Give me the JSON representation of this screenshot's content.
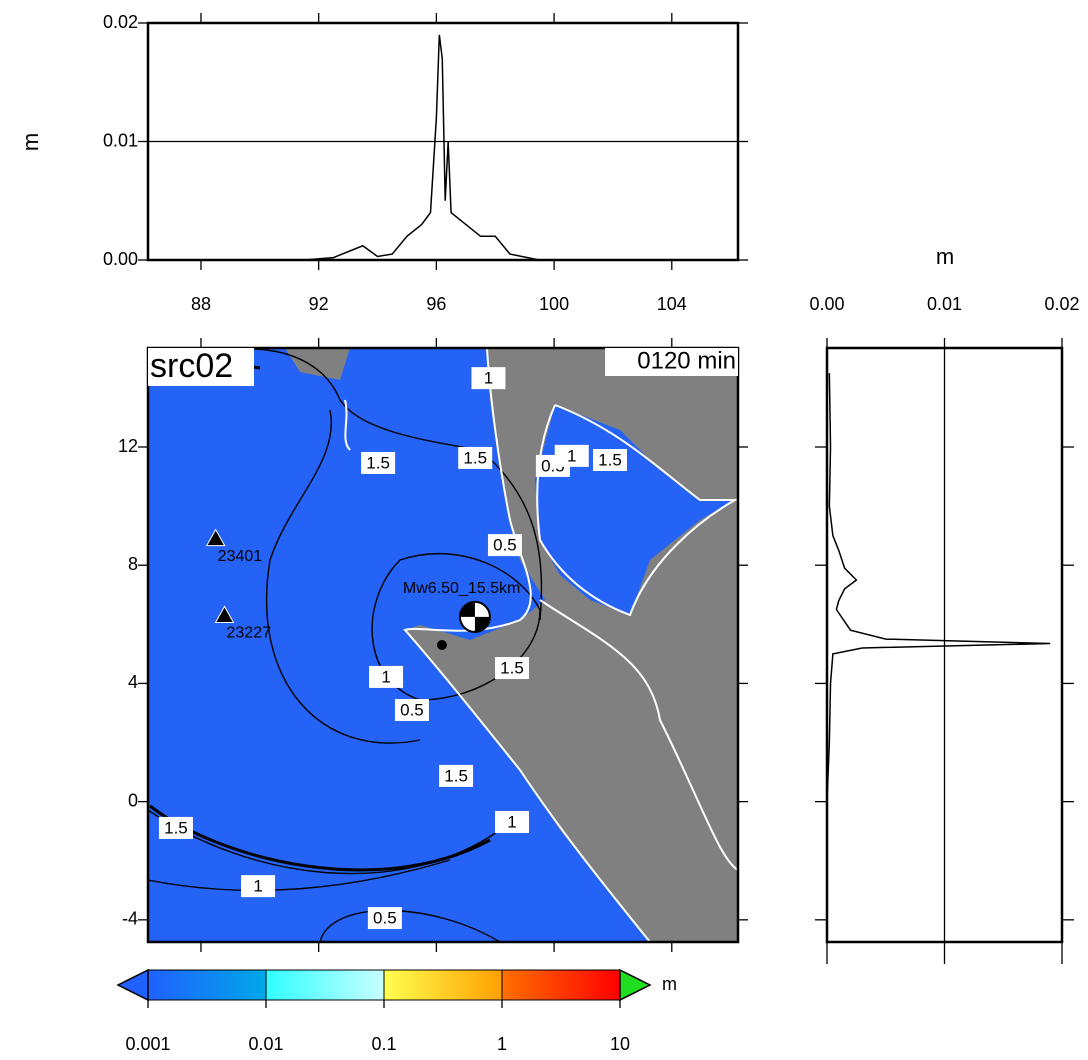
{
  "chart_data": [
    {
      "type": "line",
      "ylabel": "m",
      "x": [
        86.2,
        91.5,
        92.5,
        93.5,
        94.0,
        94.5,
        95.0,
        95.5,
        95.8,
        96.0,
        96.1,
        96.2,
        96.3,
        96.4,
        96.5,
        97.0,
        97.5,
        98.0,
        98.5,
        99.5
      ],
      "values": [
        0,
        0,
        0.0002,
        0.0012,
        0.0003,
        0.0005,
        0.002,
        0.003,
        0.004,
        0.012,
        0.019,
        0.017,
        0.005,
        0.01,
        0.004,
        0.003,
        0.002,
        0.002,
        0.0005,
        0
      ],
      "color": "#000000",
      "xlim": [
        86.2,
        106.25
      ],
      "ylim": [
        0,
        0.02
      ],
      "xticks": [
        88,
        92,
        96,
        100,
        104
      ],
      "yticks": [
        {
          "value": 0,
          "label": "0.00"
        },
        {
          "value": 0.01,
          "label": "0.01"
        },
        {
          "value": 0.02,
          "label": "0.02"
        }
      ],
      "grid": true
    },
    {
      "type": "profile",
      "xlabel": "m",
      "y": [
        14.5,
        12,
        10,
        9,
        8.5,
        7.9,
        7.5,
        7.2,
        6.8,
        6.5,
        5.8,
        5.5,
        5.35,
        5.2,
        5.0,
        4,
        2,
        0,
        -4.75
      ],
      "values": [
        0.0002,
        0.0003,
        0.0002,
        0.0005,
        0.001,
        0.0015,
        0.0025,
        0.0015,
        0.001,
        0.0008,
        0.002,
        0.005,
        0.019,
        0.003,
        0.0005,
        0.0003,
        0.0002,
        0,
        0
      ],
      "color": "#000000",
      "xlim": [
        0,
        0.02
      ],
      "ylim": [
        -4.75,
        15.35
      ],
      "xticks": [
        {
          "value": 0,
          "label": "0.00"
        },
        {
          "value": 0.01,
          "label": "0.01"
        },
        {
          "value": 0.02,
          "label": "0.02"
        }
      ],
      "grid": true
    },
    {
      "type": "map",
      "title": "src02",
      "annotation": "0120 min",
      "xlim": [
        86.2,
        106.25
      ],
      "ylim": [
        -4.75,
        15.35
      ],
      "yticks": [
        12,
        8,
        4,
        0,
        -4
      ],
      "stations": [
        {
          "label": "23401",
          "x": 88.5,
          "y": 8.9
        },
        {
          "label": "23227",
          "x": 88.8,
          "y": 6.3
        }
      ],
      "event": {
        "label": "Mw6.50_15.5km",
        "x": 97.31,
        "y": 6.25
      },
      "epicenter": {
        "x": 96.19,
        "y": 5.3
      },
      "contour_labels": [
        {
          "label": "1",
          "x": 97.77,
          "y": 14.33
        },
        {
          "label": "1.5",
          "x": 94.02,
          "y": 11.46
        },
        {
          "label": "1.5",
          "x": 97.32,
          "y": 11.63
        },
        {
          "label": "0.5",
          "x": 99.96,
          "y": 11.36
        },
        {
          "label": "1",
          "x": 100.6,
          "y": 11.7
        },
        {
          "label": "1.5",
          "x": 101.9,
          "y": 11.56
        },
        {
          "label": "0.5",
          "x": 98.33,
          "y": 8.68
        },
        {
          "label": "1",
          "x": 94.29,
          "y": 4.22
        },
        {
          "label": "0.5",
          "x": 95.17,
          "y": 3.1
        },
        {
          "label": "1.5",
          "x": 98.57,
          "y": 4.52
        },
        {
          "label": "1.5",
          "x": 96.67,
          "y": 0.87
        },
        {
          "label": "1",
          "x": 98.57,
          "y": -0.69
        },
        {
          "label": "1.5",
          "x": 87.15,
          "y": -0.89
        },
        {
          "label": "1",
          "x": 89.94,
          "y": -2.86
        },
        {
          "label": "0.5",
          "x": 94.25,
          "y": -3.94
        }
      ],
      "colorbar": {
        "unit": "m",
        "ticks": [
          0.001,
          0.01,
          0.1,
          1,
          10
        ],
        "colors": [
          [
            "#2060ff",
            "#00a8e8"
          ],
          [
            "#30ffff",
            "#c8ffff"
          ],
          [
            "#ffff50",
            "#ffa000"
          ],
          [
            "#ff7000",
            "#ff0000"
          ]
        ],
        "under": "#2060ff",
        "over": "#20dd20"
      }
    }
  ]
}
